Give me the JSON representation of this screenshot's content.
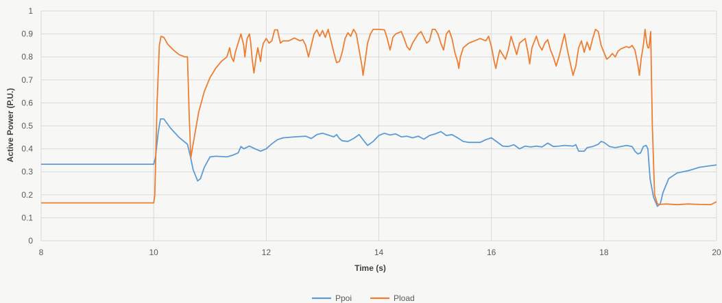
{
  "chart_data": {
    "type": "line",
    "xlabel": "Time (s)",
    "ylabel": "Active Power (P.U.)",
    "xlim": [
      8,
      20
    ],
    "ylim": [
      0,
      1
    ],
    "x_ticks": [
      8,
      10,
      12,
      14,
      16,
      18,
      20
    ],
    "y_ticks": [
      0,
      0.1,
      0.2,
      0.3,
      0.4,
      0.5,
      0.6,
      0.7,
      0.8,
      0.9,
      1
    ],
    "grid": true,
    "legend": "bottom-center",
    "series": [
      {
        "name": "Ppoi",
        "color": "#5b9bd5",
        "points": [
          [
            8.0,
            0.333
          ],
          [
            10.0,
            0.333
          ],
          [
            10.03,
            0.36
          ],
          [
            10.08,
            0.47
          ],
          [
            10.12,
            0.53
          ],
          [
            10.18,
            0.53
          ],
          [
            10.3,
            0.49
          ],
          [
            10.45,
            0.45
          ],
          [
            10.6,
            0.42
          ],
          [
            10.65,
            0.37
          ],
          [
            10.7,
            0.31
          ],
          [
            10.78,
            0.26
          ],
          [
            10.83,
            0.27
          ],
          [
            10.9,
            0.32
          ],
          [
            11.0,
            0.365
          ],
          [
            11.1,
            0.368
          ],
          [
            11.3,
            0.365
          ],
          [
            11.4,
            0.372
          ],
          [
            11.5,
            0.382
          ],
          [
            11.55,
            0.41
          ],
          [
            11.6,
            0.4
          ],
          [
            11.7,
            0.412
          ],
          [
            11.8,
            0.4
          ],
          [
            11.9,
            0.39
          ],
          [
            12.0,
            0.4
          ],
          [
            12.1,
            0.422
          ],
          [
            12.2,
            0.44
          ],
          [
            12.3,
            0.448
          ],
          [
            12.5,
            0.452
          ],
          [
            12.7,
            0.455
          ],
          [
            12.8,
            0.445
          ],
          [
            12.9,
            0.462
          ],
          [
            13.0,
            0.468
          ],
          [
            13.1,
            0.46
          ],
          [
            13.2,
            0.452
          ],
          [
            13.25,
            0.462
          ],
          [
            13.3,
            0.445
          ],
          [
            13.35,
            0.435
          ],
          [
            13.45,
            0.432
          ],
          [
            13.55,
            0.445
          ],
          [
            13.65,
            0.462
          ],
          [
            13.75,
            0.43
          ],
          [
            13.8,
            0.415
          ],
          [
            13.9,
            0.432
          ],
          [
            14.0,
            0.458
          ],
          [
            14.1,
            0.468
          ],
          [
            14.2,
            0.46
          ],
          [
            14.3,
            0.465
          ],
          [
            14.4,
            0.452
          ],
          [
            14.5,
            0.455
          ],
          [
            14.6,
            0.448
          ],
          [
            14.7,
            0.455
          ],
          [
            14.8,
            0.442
          ],
          [
            14.9,
            0.458
          ],
          [
            15.0,
            0.465
          ],
          [
            15.1,
            0.475
          ],
          [
            15.2,
            0.458
          ],
          [
            15.3,
            0.462
          ],
          [
            15.4,
            0.448
          ],
          [
            15.5,
            0.432
          ],
          [
            15.6,
            0.428
          ],
          [
            15.8,
            0.428
          ],
          [
            15.9,
            0.44
          ],
          [
            16.0,
            0.448
          ],
          [
            16.1,
            0.43
          ],
          [
            16.2,
            0.412
          ],
          [
            16.3,
            0.41
          ],
          [
            16.4,
            0.418
          ],
          [
            16.5,
            0.4
          ],
          [
            16.6,
            0.412
          ],
          [
            16.7,
            0.408
          ],
          [
            16.8,
            0.412
          ],
          [
            16.9,
            0.408
          ],
          [
            17.0,
            0.425
          ],
          [
            17.1,
            0.41
          ],
          [
            17.2,
            0.412
          ],
          [
            17.3,
            0.415
          ],
          [
            17.45,
            0.412
          ],
          [
            17.5,
            0.418
          ],
          [
            17.55,
            0.39
          ],
          [
            17.65,
            0.39
          ],
          [
            17.7,
            0.405
          ],
          [
            17.8,
            0.41
          ],
          [
            17.9,
            0.42
          ],
          [
            17.95,
            0.432
          ],
          [
            18.0,
            0.428
          ],
          [
            18.1,
            0.41
          ],
          [
            18.2,
            0.405
          ],
          [
            18.3,
            0.41
          ],
          [
            18.4,
            0.415
          ],
          [
            18.5,
            0.41
          ],
          [
            18.55,
            0.39
          ],
          [
            18.6,
            0.378
          ],
          [
            18.65,
            0.382
          ],
          [
            18.7,
            0.41
          ],
          [
            18.75,
            0.415
          ],
          [
            18.78,
            0.4
          ],
          [
            18.82,
            0.27
          ],
          [
            18.88,
            0.19
          ],
          [
            18.95,
            0.15
          ],
          [
            19.0,
            0.16
          ],
          [
            19.05,
            0.21
          ],
          [
            19.15,
            0.27
          ],
          [
            19.3,
            0.295
          ],
          [
            19.5,
            0.305
          ],
          [
            19.7,
            0.32
          ],
          [
            20.0,
            0.33
          ]
        ]
      },
      {
        "name": "Pload",
        "color": "#ed7d31",
        "points": [
          [
            8.0,
            0.165
          ],
          [
            10.0,
            0.165
          ],
          [
            10.02,
            0.2
          ],
          [
            10.06,
            0.6
          ],
          [
            10.1,
            0.85
          ],
          [
            10.13,
            0.89
          ],
          [
            10.18,
            0.885
          ],
          [
            10.25,
            0.855
          ],
          [
            10.35,
            0.83
          ],
          [
            10.45,
            0.81
          ],
          [
            10.55,
            0.8
          ],
          [
            10.6,
            0.8
          ],
          [
            10.63,
            0.55
          ],
          [
            10.66,
            0.36
          ],
          [
            10.7,
            0.42
          ],
          [
            10.8,
            0.56
          ],
          [
            10.9,
            0.65
          ],
          [
            11.0,
            0.71
          ],
          [
            11.1,
            0.75
          ],
          [
            11.2,
            0.78
          ],
          [
            11.3,
            0.8
          ],
          [
            11.35,
            0.84
          ],
          [
            11.38,
            0.8
          ],
          [
            11.42,
            0.78
          ],
          [
            11.45,
            0.82
          ],
          [
            11.5,
            0.86
          ],
          [
            11.55,
            0.9
          ],
          [
            11.6,
            0.85
          ],
          [
            11.62,
            0.8
          ],
          [
            11.66,
            0.88
          ],
          [
            11.7,
            0.9
          ],
          [
            11.72,
            0.87
          ],
          [
            11.75,
            0.79
          ],
          [
            11.78,
            0.73
          ],
          [
            11.82,
            0.8
          ],
          [
            11.85,
            0.84
          ],
          [
            11.9,
            0.78
          ],
          [
            11.92,
            0.83
          ],
          [
            11.95,
            0.86
          ],
          [
            12.0,
            0.88
          ],
          [
            12.05,
            0.86
          ],
          [
            12.1,
            0.87
          ],
          [
            12.15,
            0.918
          ],
          [
            12.2,
            0.918
          ],
          [
            12.25,
            0.86
          ],
          [
            12.3,
            0.87
          ],
          [
            12.4,
            0.87
          ],
          [
            12.5,
            0.882
          ],
          [
            12.6,
            0.87
          ],
          [
            12.65,
            0.875
          ],
          [
            12.7,
            0.85
          ],
          [
            12.75,
            0.8
          ],
          [
            12.8,
            0.85
          ],
          [
            12.85,
            0.9
          ],
          [
            12.9,
            0.918
          ],
          [
            12.95,
            0.89
          ],
          [
            13.0,
            0.915
          ],
          [
            13.05,
            0.885
          ],
          [
            13.1,
            0.92
          ],
          [
            13.15,
            0.87
          ],
          [
            13.2,
            0.82
          ],
          [
            13.25,
            0.775
          ],
          [
            13.3,
            0.78
          ],
          [
            13.35,
            0.82
          ],
          [
            13.4,
            0.88
          ],
          [
            13.45,
            0.905
          ],
          [
            13.5,
            0.89
          ],
          [
            13.55,
            0.92
          ],
          [
            13.6,
            0.9
          ],
          [
            13.65,
            0.83
          ],
          [
            13.7,
            0.76
          ],
          [
            13.72,
            0.72
          ],
          [
            13.76,
            0.79
          ],
          [
            13.8,
            0.86
          ],
          [
            13.85,
            0.9
          ],
          [
            13.9,
            0.92
          ],
          [
            14.0,
            0.92
          ],
          [
            14.1,
            0.918
          ],
          [
            14.15,
            0.88
          ],
          [
            14.2,
            0.83
          ],
          [
            14.25,
            0.885
          ],
          [
            14.3,
            0.9
          ],
          [
            14.4,
            0.91
          ],
          [
            14.45,
            0.88
          ],
          [
            14.5,
            0.845
          ],
          [
            14.55,
            0.83
          ],
          [
            14.6,
            0.86
          ],
          [
            14.7,
            0.9
          ],
          [
            14.75,
            0.91
          ],
          [
            14.8,
            0.885
          ],
          [
            14.85,
            0.86
          ],
          [
            14.9,
            0.87
          ],
          [
            14.95,
            0.92
          ],
          [
            15.0,
            0.92
          ],
          [
            15.05,
            0.9
          ],
          [
            15.1,
            0.86
          ],
          [
            15.15,
            0.83
          ],
          [
            15.2,
            0.9
          ],
          [
            15.25,
            0.915
          ],
          [
            15.3,
            0.88
          ],
          [
            15.35,
            0.82
          ],
          [
            15.4,
            0.78
          ],
          [
            15.42,
            0.75
          ],
          [
            15.45,
            0.8
          ],
          [
            15.5,
            0.84
          ],
          [
            15.6,
            0.86
          ],
          [
            15.7,
            0.87
          ],
          [
            15.8,
            0.88
          ],
          [
            15.9,
            0.87
          ],
          [
            15.95,
            0.89
          ],
          [
            16.0,
            0.845
          ],
          [
            16.05,
            0.78
          ],
          [
            16.08,
            0.75
          ],
          [
            16.12,
            0.8
          ],
          [
            16.15,
            0.83
          ],
          [
            16.2,
            0.81
          ],
          [
            16.25,
            0.79
          ],
          [
            16.3,
            0.83
          ],
          [
            16.35,
            0.89
          ],
          [
            16.4,
            0.85
          ],
          [
            16.45,
            0.81
          ],
          [
            16.5,
            0.86
          ],
          [
            16.6,
            0.88
          ],
          [
            16.65,
            0.82
          ],
          [
            16.68,
            0.77
          ],
          [
            16.72,
            0.84
          ],
          [
            16.8,
            0.89
          ],
          [
            16.85,
            0.85
          ],
          [
            16.9,
            0.83
          ],
          [
            16.95,
            0.86
          ],
          [
            17.0,
            0.875
          ],
          [
            17.05,
            0.83
          ],
          [
            17.1,
            0.8
          ],
          [
            17.15,
            0.76
          ],
          [
            17.2,
            0.8
          ],
          [
            17.25,
            0.85
          ],
          [
            17.3,
            0.9
          ],
          [
            17.35,
            0.83
          ],
          [
            17.4,
            0.775
          ],
          [
            17.45,
            0.72
          ],
          [
            17.5,
            0.76
          ],
          [
            17.55,
            0.84
          ],
          [
            17.6,
            0.87
          ],
          [
            17.65,
            0.82
          ],
          [
            17.7,
            0.865
          ],
          [
            17.75,
            0.83
          ],
          [
            17.8,
            0.88
          ],
          [
            17.85,
            0.92
          ],
          [
            17.9,
            0.91
          ],
          [
            17.95,
            0.85
          ],
          [
            18.0,
            0.82
          ],
          [
            18.05,
            0.79
          ],
          [
            18.1,
            0.8
          ],
          [
            18.15,
            0.815
          ],
          [
            18.2,
            0.8
          ],
          [
            18.25,
            0.825
          ],
          [
            18.3,
            0.835
          ],
          [
            18.4,
            0.845
          ],
          [
            18.45,
            0.84
          ],
          [
            18.5,
            0.85
          ],
          [
            18.55,
            0.83
          ],
          [
            18.6,
            0.77
          ],
          [
            18.63,
            0.72
          ],
          [
            18.66,
            0.79
          ],
          [
            18.7,
            0.85
          ],
          [
            18.73,
            0.92
          ],
          [
            18.76,
            0.86
          ],
          [
            18.78,
            0.84
          ],
          [
            18.8,
            0.84
          ],
          [
            18.83,
            0.91
          ],
          [
            18.86,
            0.5
          ],
          [
            18.9,
            0.2
          ],
          [
            18.95,
            0.16
          ],
          [
            19.0,
            0.158
          ],
          [
            19.1,
            0.16
          ],
          [
            19.3,
            0.157
          ],
          [
            19.5,
            0.16
          ],
          [
            19.7,
            0.158
          ],
          [
            19.9,
            0.157
          ],
          [
            20.0,
            0.17
          ]
        ]
      }
    ]
  }
}
